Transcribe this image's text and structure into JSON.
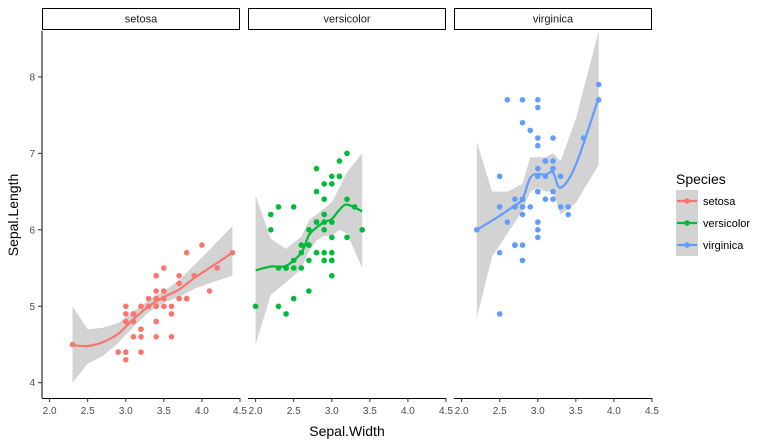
{
  "chart_data": {
    "type": "scatter",
    "title": "",
    "xlabel": "Sepal.Width",
    "ylabel": "Sepal.Length",
    "xlim": [
      1.9,
      4.5
    ],
    "ylim": [
      3.8,
      8.6
    ],
    "x_ticks": [
      2.0,
      2.5,
      3.0,
      3.5,
      4.0,
      4.5
    ],
    "x_tick_labels": [
      "2.0",
      "2.5",
      "3.0",
      "3.5",
      "4.0",
      "4.5"
    ],
    "y_ticks": [
      4,
      5,
      6,
      7,
      8
    ],
    "y_tick_labels": [
      "4",
      "5",
      "6",
      "7",
      "8"
    ],
    "facets": [
      "setosa",
      "versicolor",
      "virginica"
    ],
    "legend": {
      "title": "Species",
      "placement": "right",
      "entries": [
        "setosa",
        "versicolor",
        "virginica"
      ]
    },
    "colors": {
      "setosa": "#F8766D",
      "versicolor": "#00BA38",
      "virginica": "#619CFF",
      "band": "#d3d3d3"
    },
    "series": [
      {
        "name": "setosa",
        "points": [
          [
            3.5,
            5.1
          ],
          [
            3.0,
            4.9
          ],
          [
            3.2,
            4.7
          ],
          [
            3.1,
            4.6
          ],
          [
            3.6,
            5.0
          ],
          [
            3.9,
            5.4
          ],
          [
            3.4,
            4.6
          ],
          [
            3.4,
            5.0
          ],
          [
            2.9,
            4.4
          ],
          [
            3.1,
            4.9
          ],
          [
            3.7,
            5.4
          ],
          [
            3.4,
            4.8
          ],
          [
            3.0,
            4.8
          ],
          [
            3.0,
            4.3
          ],
          [
            4.0,
            5.8
          ],
          [
            4.4,
            5.7
          ],
          [
            3.9,
            5.4
          ],
          [
            3.5,
            5.1
          ],
          [
            3.8,
            5.7
          ],
          [
            3.8,
            5.1
          ],
          [
            3.4,
            5.4
          ],
          [
            3.7,
            5.1
          ],
          [
            3.6,
            4.6
          ],
          [
            3.3,
            5.1
          ],
          [
            3.4,
            4.8
          ],
          [
            3.0,
            5.0
          ],
          [
            3.4,
            5.0
          ],
          [
            3.5,
            5.2
          ],
          [
            3.4,
            5.2
          ],
          [
            3.2,
            4.7
          ],
          [
            3.1,
            4.8
          ],
          [
            3.4,
            5.4
          ],
          [
            4.1,
            5.2
          ],
          [
            4.2,
            5.5
          ],
          [
            3.1,
            4.9
          ],
          [
            3.2,
            5.0
          ],
          [
            3.5,
            5.5
          ],
          [
            3.6,
            4.9
          ],
          [
            3.0,
            4.4
          ],
          [
            3.4,
            5.1
          ],
          [
            3.5,
            5.0
          ],
          [
            2.3,
            4.5
          ],
          [
            3.2,
            4.4
          ],
          [
            3.5,
            5.0
          ],
          [
            3.8,
            5.1
          ],
          [
            3.0,
            4.8
          ],
          [
            3.8,
            5.1
          ],
          [
            3.2,
            4.6
          ],
          [
            3.7,
            5.3
          ],
          [
            3.3,
            5.0
          ]
        ],
        "smooth": [
          [
            2.3,
            4.49
          ],
          [
            2.5,
            4.48
          ],
          [
            2.7,
            4.53
          ],
          [
            2.9,
            4.64
          ],
          [
            3.1,
            4.83
          ],
          [
            3.3,
            5.0
          ],
          [
            3.5,
            5.12
          ],
          [
            3.7,
            5.22
          ],
          [
            3.9,
            5.37
          ],
          [
            4.1,
            5.5
          ],
          [
            4.4,
            5.7
          ]
        ],
        "band": [
          [
            2.3,
            4.0,
            5.0
          ],
          [
            2.5,
            4.25,
            4.7
          ],
          [
            2.7,
            4.35,
            4.72
          ],
          [
            2.9,
            4.52,
            4.78
          ],
          [
            3.1,
            4.73,
            4.93
          ],
          [
            3.3,
            4.92,
            5.08
          ],
          [
            3.5,
            5.05,
            5.2
          ],
          [
            3.7,
            5.12,
            5.34
          ],
          [
            3.9,
            5.23,
            5.54
          ],
          [
            4.1,
            5.3,
            5.74
          ],
          [
            4.4,
            5.4,
            6.05
          ]
        ]
      },
      {
        "name": "versicolor",
        "points": [
          [
            3.2,
            7.0
          ],
          [
            3.2,
            6.4
          ],
          [
            3.1,
            6.9
          ],
          [
            2.3,
            5.5
          ],
          [
            2.8,
            6.5
          ],
          [
            2.8,
            5.7
          ],
          [
            3.3,
            6.3
          ],
          [
            2.4,
            4.9
          ],
          [
            2.9,
            6.6
          ],
          [
            2.7,
            5.2
          ],
          [
            2.0,
            5.0
          ],
          [
            3.0,
            5.9
          ],
          [
            2.2,
            6.0
          ],
          [
            2.9,
            6.1
          ],
          [
            2.9,
            5.6
          ],
          [
            3.1,
            6.7
          ],
          [
            3.0,
            5.6
          ],
          [
            2.7,
            5.8
          ],
          [
            2.2,
            6.2
          ],
          [
            2.5,
            5.6
          ],
          [
            3.2,
            5.9
          ],
          [
            2.8,
            6.1
          ],
          [
            2.5,
            6.3
          ],
          [
            2.8,
            6.1
          ],
          [
            2.9,
            6.4
          ],
          [
            3.0,
            6.6
          ],
          [
            2.8,
            6.8
          ],
          [
            3.0,
            6.7
          ],
          [
            2.9,
            6.0
          ],
          [
            2.6,
            5.7
          ],
          [
            2.4,
            5.5
          ],
          [
            2.4,
            5.5
          ],
          [
            2.7,
            5.8
          ],
          [
            2.7,
            6.0
          ],
          [
            3.0,
            5.4
          ],
          [
            3.4,
            6.0
          ],
          [
            3.1,
            6.7
          ],
          [
            2.3,
            6.3
          ],
          [
            3.0,
            5.6
          ],
          [
            2.5,
            5.5
          ],
          [
            2.6,
            5.5
          ],
          [
            3.0,
            6.1
          ],
          [
            2.6,
            5.8
          ],
          [
            2.3,
            5.0
          ],
          [
            2.7,
            5.6
          ],
          [
            3.0,
            5.7
          ],
          [
            2.9,
            5.7
          ],
          [
            2.9,
            6.2
          ],
          [
            2.5,
            5.1
          ],
          [
            2.8,
            5.7
          ]
        ],
        "smooth": [
          [
            2.0,
            5.47
          ],
          [
            2.2,
            5.52
          ],
          [
            2.4,
            5.53
          ],
          [
            2.6,
            5.7
          ],
          [
            2.7,
            5.93
          ],
          [
            2.8,
            6.03
          ],
          [
            2.9,
            6.1
          ],
          [
            3.0,
            6.14
          ],
          [
            3.1,
            6.26
          ],
          [
            3.2,
            6.33
          ],
          [
            3.4,
            6.24
          ]
        ],
        "band": [
          [
            2.0,
            4.5,
            6.45
          ],
          [
            2.2,
            5.15,
            5.88
          ],
          [
            2.4,
            5.31,
            5.75
          ],
          [
            2.6,
            5.49,
            5.91
          ],
          [
            2.7,
            5.72,
            6.12
          ],
          [
            2.8,
            5.86,
            6.2
          ],
          [
            2.9,
            5.92,
            6.28
          ],
          [
            3.0,
            5.92,
            6.36
          ],
          [
            3.1,
            6.0,
            6.55
          ],
          [
            3.2,
            5.95,
            6.75
          ],
          [
            3.4,
            5.5,
            7.0
          ]
        ]
      },
      {
        "name": "virginica",
        "points": [
          [
            3.3,
            6.3
          ],
          [
            2.7,
            5.8
          ],
          [
            3.0,
            7.1
          ],
          [
            2.9,
            6.3
          ],
          [
            3.0,
            6.5
          ],
          [
            3.0,
            7.6
          ],
          [
            2.5,
            4.9
          ],
          [
            2.9,
            7.3
          ],
          [
            2.5,
            6.7
          ],
          [
            3.6,
            7.2
          ],
          [
            3.2,
            6.5
          ],
          [
            2.7,
            6.4
          ],
          [
            3.0,
            6.8
          ],
          [
            2.5,
            5.7
          ],
          [
            2.8,
            5.8
          ],
          [
            3.2,
            6.4
          ],
          [
            3.0,
            6.5
          ],
          [
            3.8,
            7.7
          ],
          [
            2.6,
            7.7
          ],
          [
            2.2,
            6.0
          ],
          [
            3.2,
            6.9
          ],
          [
            2.8,
            5.6
          ],
          [
            2.8,
            7.7
          ],
          [
            2.7,
            6.3
          ],
          [
            3.3,
            6.7
          ],
          [
            3.2,
            7.2
          ],
          [
            2.8,
            6.2
          ],
          [
            3.0,
            6.1
          ],
          [
            2.8,
            6.4
          ],
          [
            3.0,
            7.2
          ],
          [
            2.8,
            7.4
          ],
          [
            3.8,
            7.9
          ],
          [
            2.8,
            6.4
          ],
          [
            2.8,
            6.3
          ],
          [
            2.6,
            6.1
          ],
          [
            3.0,
            7.7
          ],
          [
            3.4,
            6.3
          ],
          [
            3.1,
            6.4
          ],
          [
            3.0,
            6.0
          ],
          [
            3.1,
            6.9
          ],
          [
            3.1,
            6.7
          ],
          [
            3.1,
            6.9
          ],
          [
            2.7,
            5.8
          ],
          [
            3.2,
            6.8
          ],
          [
            3.3,
            6.7
          ],
          [
            3.0,
            6.7
          ],
          [
            2.5,
            6.3
          ],
          [
            3.0,
            6.5
          ],
          [
            3.4,
            6.2
          ],
          [
            3.0,
            5.9
          ]
        ],
        "smooth": [
          [
            2.2,
            6.0
          ],
          [
            2.4,
            6.12
          ],
          [
            2.6,
            6.25
          ],
          [
            2.7,
            6.32
          ],
          [
            2.8,
            6.4
          ],
          [
            2.9,
            6.68
          ],
          [
            3.0,
            6.73
          ],
          [
            3.1,
            6.72
          ],
          [
            3.2,
            6.75
          ],
          [
            3.3,
            6.55
          ],
          [
            3.5,
            6.85
          ],
          [
            3.8,
            7.73
          ]
        ],
        "band": [
          [
            2.2,
            4.85,
            7.15
          ],
          [
            2.4,
            5.65,
            6.5
          ],
          [
            2.6,
            5.95,
            6.5
          ],
          [
            2.7,
            6.1,
            6.55
          ],
          [
            2.8,
            6.25,
            6.6
          ],
          [
            2.9,
            6.5,
            6.95
          ],
          [
            3.0,
            6.55,
            6.95
          ],
          [
            3.1,
            6.5,
            6.95
          ],
          [
            3.2,
            6.5,
            7.0
          ],
          [
            3.3,
            6.2,
            6.9
          ],
          [
            3.5,
            6.35,
            7.45
          ],
          [
            3.8,
            6.85,
            8.6
          ]
        ]
      }
    ]
  }
}
